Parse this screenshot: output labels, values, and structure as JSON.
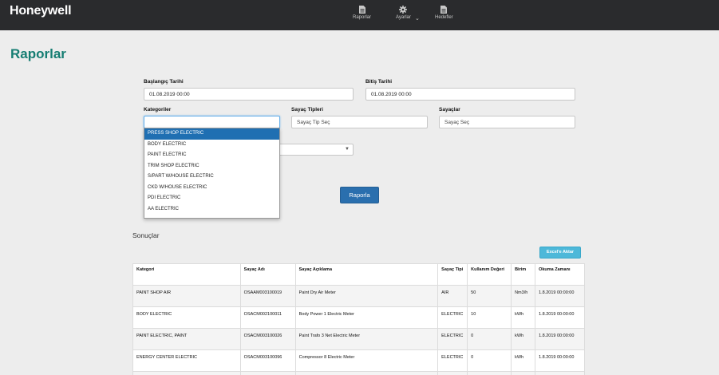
{
  "header": {
    "brand": "Honeywell",
    "nav": [
      {
        "label": "Raporlar",
        "icon": "file-icon"
      },
      {
        "label": "Ayarlar",
        "icon": "gear-icon"
      },
      {
        "label": "Hedefler",
        "icon": "file-icon"
      }
    ]
  },
  "page": {
    "title": "Raporlar"
  },
  "form": {
    "start_label": "Başlangıç Tarihi",
    "start_value": "01.08.2019 00:00",
    "end_label": "Bitiş Tarihi",
    "end_value": "01.08.2019 00:00",
    "categories_label": "Kategoriler",
    "categories_value": "",
    "meter_types_label": "Sayaç Tipleri",
    "meter_types_placeholder": "Sayaç Tip Seç",
    "meters_label": "Sayaçlar",
    "meters_placeholder": "Sayaç Seç",
    "submit_label": "Raporla"
  },
  "dropdown": {
    "options": [
      "PRESS SHOP ELECTRIC",
      "BODY ELECTRIC",
      "PAINT ELECTRIC",
      "TRIM SHOP ELECTRIC",
      "S/PART W/HOUSE ELECTRIC",
      "CKD W/HOUSE ELECTRIC",
      "PDI ELECTRIC",
      "AA ELECTRIC"
    ],
    "selected_index": 0
  },
  "results": {
    "title": "Sonuçlar",
    "export_label": "Excel'e Aktar",
    "columns": [
      "Kategori",
      "Sayaç Adı",
      "Sayaç Açıklama",
      "Sayaç Tipi",
      "Kullanım Değeri",
      "Birim",
      "Okuma Zamanı"
    ],
    "rows": [
      [
        "PAINT SHOP AIR",
        "OSAAM003100019",
        "Paint Dry Air Meter",
        "AIR",
        "50",
        "Nm3/h",
        "1.8.2019 00:00:00"
      ],
      [
        "BODY ELECTRIC",
        "OSACM002100011",
        "Body Power 1 Electric Meter",
        "ELECTRIC",
        "10",
        "kWh",
        "1.8.2019 00:00:00"
      ],
      [
        "PAINT ELECTRIC, PAINT",
        "OSACM003100026",
        "Paint Trafo 3 Net Electric Meter",
        "ELECTRIC",
        "0",
        "kWh",
        "1.8.2019 00:00:00"
      ],
      [
        "ENERGY CENTER ELECTRIC",
        "OSACM003100096",
        "Compressor 8 Electric Meter",
        "ELECTRIC",
        "0",
        "kWh",
        "1.8.2019 00:00:00"
      ]
    ]
  },
  "colors": {
    "topbar": "#2a2b2d",
    "title": "#157d72",
    "primary_button": "#2a6fae",
    "export_button": "#4db8d9",
    "selected_option": "#1f6fb2"
  }
}
